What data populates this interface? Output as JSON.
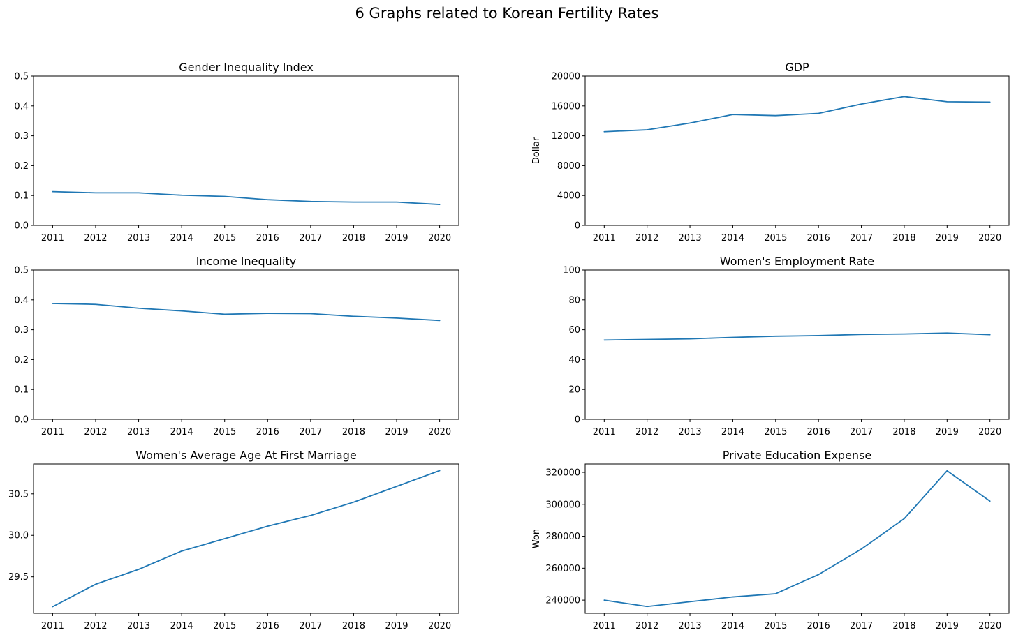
{
  "figure": {
    "title": "6 Graphs related to Korean Fertility Rates"
  },
  "chart_data": [
    {
      "type": "line",
      "title": "Gender Inequality Index",
      "xlabel": "",
      "ylabel": "",
      "x": [
        "2011",
        "2012",
        "2013",
        "2014",
        "2015",
        "2016",
        "2017",
        "2018",
        "2019",
        "2020"
      ],
      "series": [
        {
          "values": [
            0.113,
            0.109,
            0.109,
            0.101,
            0.097,
            0.086,
            0.08,
            0.078,
            0.078,
            0.07
          ]
        }
      ],
      "ylim": [
        0,
        0.5
      ],
      "yticks": [
        0,
        0.1,
        0.2,
        0.3,
        0.4,
        0.5
      ],
      "ytick_labels": [
        "0.0",
        "0.1",
        "0.2",
        "0.3",
        "0.4",
        "0.5"
      ],
      "grid": false,
      "color": "#1f77b4"
    },
    {
      "type": "line",
      "title": "GDP",
      "xlabel": "",
      "ylabel": "Dollar",
      "x": [
        "2011",
        "2012",
        "2013",
        "2014",
        "2015",
        "2016",
        "2017",
        "2018",
        "2019",
        "2020"
      ],
      "series": [
        {
          "values": [
            12550,
            12800,
            13700,
            14850,
            14700,
            15000,
            16250,
            17250,
            16550,
            16500
          ]
        }
      ],
      "ylim": [
        0,
        20000
      ],
      "yticks": [
        0,
        4000,
        8000,
        12000,
        16000,
        20000
      ],
      "ytick_labels": [
        "0",
        "4000",
        "8000",
        "12000",
        "16000",
        "20000"
      ],
      "grid": false,
      "color": "#1f77b4"
    },
    {
      "type": "line",
      "title": "Income Inequality",
      "xlabel": "",
      "ylabel": "",
      "x": [
        "2011",
        "2012",
        "2013",
        "2014",
        "2015",
        "2016",
        "2017",
        "2018",
        "2019",
        "2020"
      ],
      "series": [
        {
          "values": [
            0.388,
            0.385,
            0.372,
            0.363,
            0.352,
            0.355,
            0.354,
            0.345,
            0.339,
            0.331
          ]
        }
      ],
      "ylim": [
        0,
        0.5
      ],
      "yticks": [
        0,
        0.1,
        0.2,
        0.3,
        0.4,
        0.5
      ],
      "ytick_labels": [
        "0.0",
        "0.1",
        "0.2",
        "0.3",
        "0.4",
        "0.5"
      ],
      "grid": false,
      "color": "#1f77b4"
    },
    {
      "type": "line",
      "title": "Women's Employment Rate",
      "xlabel": "",
      "ylabel": "",
      "x": [
        "2011",
        "2012",
        "2013",
        "2014",
        "2015",
        "2016",
        "2017",
        "2018",
        "2019",
        "2020"
      ],
      "series": [
        {
          "values": [
            53.1,
            53.5,
            53.9,
            54.9,
            55.7,
            56.1,
            56.9,
            57.2,
            57.8,
            56.7
          ]
        }
      ],
      "ylim": [
        0,
        100
      ],
      "yticks": [
        0,
        20,
        40,
        60,
        80,
        100
      ],
      "ytick_labels": [
        "0",
        "20",
        "40",
        "60",
        "80",
        "100"
      ],
      "grid": false,
      "color": "#1f77b4"
    },
    {
      "type": "line",
      "title": "Women's Average Age At First Marriage",
      "xlabel": "",
      "ylabel": "",
      "x": [
        "2011",
        "2012",
        "2013",
        "2014",
        "2015",
        "2016",
        "2017",
        "2018",
        "2019",
        "2020"
      ],
      "series": [
        {
          "values": [
            29.14,
            29.41,
            29.59,
            29.81,
            29.96,
            30.11,
            30.24,
            30.4,
            30.59,
            30.78
          ]
        }
      ],
      "ylim": [
        29.06,
        30.86
      ],
      "yticks": [
        29.5,
        30.0,
        30.5
      ],
      "ytick_labels": [
        "29.5",
        "30.0",
        "30.5"
      ],
      "grid": false,
      "color": "#1f77b4"
    },
    {
      "type": "line",
      "title": "Private Education Expense",
      "xlabel": "",
      "ylabel": "Won",
      "x": [
        "2011",
        "2012",
        "2013",
        "2014",
        "2015",
        "2016",
        "2017",
        "2018",
        "2019",
        "2020"
      ],
      "series": [
        {
          "values": [
            240000,
            236000,
            239000,
            242000,
            244000,
            256000,
            272000,
            291000,
            321000,
            302000
          ]
        }
      ],
      "ylim": [
        231750,
        325250
      ],
      "yticks": [
        240000,
        260000,
        280000,
        300000,
        320000
      ],
      "ytick_labels": [
        "240000",
        "260000",
        "280000",
        "300000",
        "320000"
      ],
      "grid": false,
      "color": "#1f77b4"
    }
  ]
}
